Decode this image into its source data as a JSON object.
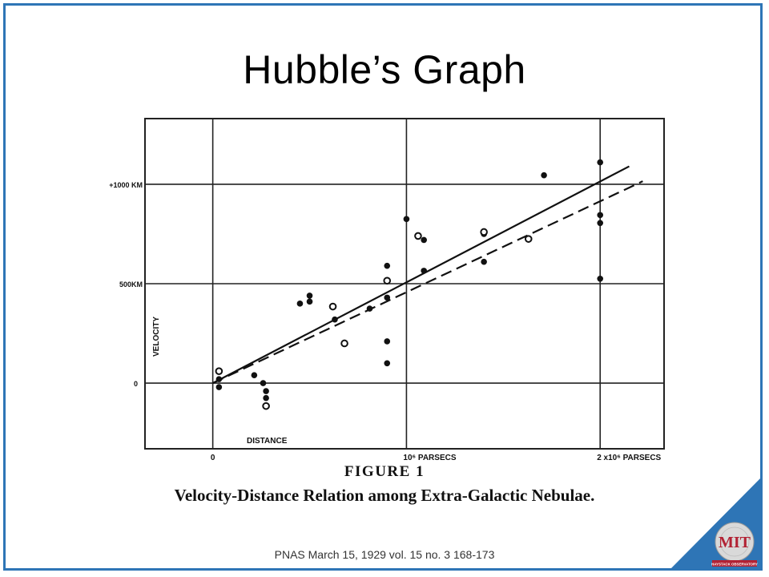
{
  "slide": {
    "title": "Hubble’s Graph",
    "figure_label": "FIGURE 1",
    "caption": "Velocity-Distance Relation among Extra-Galactic Nebulae.",
    "citation": "PNAS March 15, 1929 vol. 15 no. 3 168-173",
    "logo_text": "MIT",
    "logo_subtext": "HAYSTACK OBSERVATORY",
    "accent_color": "#2e75b6",
    "logo_color": "#b22234"
  },
  "chart_data": {
    "type": "scatter",
    "title": "",
    "xlabel": "DISTANCE",
    "ylabel": "VELOCITY",
    "xlim": [
      -0.35,
      2.33
    ],
    "ylim": [
      -330,
      1330
    ],
    "grid": true,
    "x_ticks": [
      {
        "value": 0,
        "label": "0"
      },
      {
        "value": 1,
        "label": "10⁶ PARSECS"
      },
      {
        "value": 2,
        "label": "2 x10⁶ PARSECS"
      }
    ],
    "y_ticks": [
      {
        "value": 0,
        "label": "0"
      },
      {
        "value": 500,
        "label": "500KM"
      },
      {
        "value": 1000,
        "label": "+1000 KM"
      }
    ],
    "series": [
      {
        "marker": "filled",
        "points": [
          [
            0.032,
            20
          ],
          [
            0.032,
            -20
          ],
          [
            0.214,
            40
          ],
          [
            0.26,
            0
          ],
          [
            0.275,
            -40
          ],
          [
            0.275,
            -75
          ],
          [
            0.45,
            400
          ],
          [
            0.5,
            410
          ],
          [
            0.5,
            440
          ],
          [
            0.63,
            320
          ],
          [
            0.81,
            375
          ],
          [
            0.9,
            590
          ],
          [
            0.9,
            430
          ],
          [
            0.9,
            210
          ],
          [
            0.9,
            100
          ],
          [
            1.0,
            825
          ],
          [
            1.09,
            720
          ],
          [
            1.09,
            565
          ],
          [
            1.4,
            610
          ],
          [
            1.4,
            750
          ],
          [
            1.71,
            1045
          ],
          [
            2.0,
            1110
          ],
          [
            2.0,
            845
          ],
          [
            2.0,
            805
          ],
          [
            2.0,
            525
          ]
        ]
      },
      {
        "marker": "open",
        "points": [
          [
            0.032,
            60
          ],
          [
            0.275,
            -115
          ],
          [
            0.62,
            385
          ],
          [
            0.68,
            200
          ],
          [
            0.9,
            515
          ],
          [
            1.06,
            740
          ],
          [
            1.4,
            760
          ],
          [
            1.63,
            725
          ]
        ]
      }
    ],
    "fit_lines": [
      {
        "style": "solid",
        "from": [
          0.0,
          0
        ],
        "to": [
          2.15,
          1090
        ]
      },
      {
        "style": "dashed",
        "from": [
          0.0,
          0
        ],
        "to": [
          2.22,
          1015
        ]
      }
    ]
  }
}
